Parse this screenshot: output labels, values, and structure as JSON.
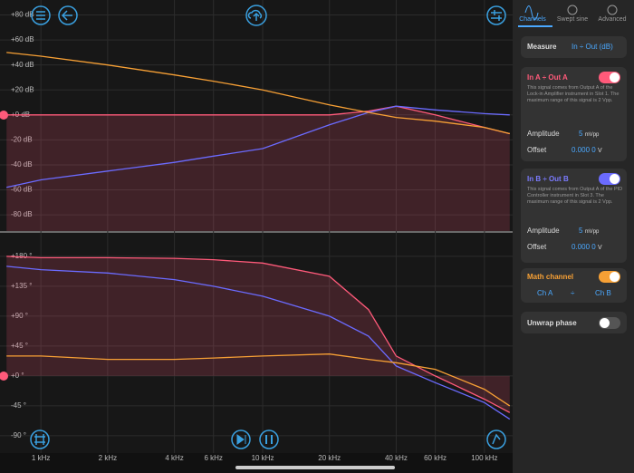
{
  "chart_data": [
    {
      "type": "line",
      "log_x": true,
      "xlim": [
        0.654,
        134
      ],
      "ylim": [
        -93,
        92
      ],
      "x": [
        0.7,
        1,
        2,
        4,
        6,
        10,
        20,
        30,
        40,
        60,
        100,
        130
      ],
      "yticks": [
        {
          "value": 80,
          "label": "+80 dB"
        },
        {
          "value": 60,
          "label": "+60 dB"
        },
        {
          "value": 40,
          "label": "+40 dB"
        },
        {
          "value": 20,
          "label": "+20 dB"
        },
        {
          "value": 0,
          "label": "+0 dB"
        },
        {
          "value": -20,
          "label": "-20 dB"
        },
        {
          "value": -40,
          "label": "-40 dB"
        },
        {
          "value": -60,
          "label": "-60 dB"
        },
        {
          "value": -80,
          "label": "-80 dB"
        }
      ],
      "series": [
        {
          "color": "#ff5a7a",
          "values": [
            0,
            0,
            0,
            0,
            0,
            0,
            0,
            3,
            7,
            0,
            -10,
            -15
          ]
        },
        {
          "color": "#6b6bff",
          "values": [
            -58,
            -52,
            -45,
            -38,
            -33,
            -27,
            -8,
            2,
            7,
            4,
            1,
            0
          ]
        },
        {
          "color": "#f7a035",
          "values": [
            50,
            47,
            40,
            32,
            27,
            20,
            8,
            2,
            -2,
            -5,
            -10,
            -15
          ]
        }
      ]
    },
    {
      "type": "line",
      "log_x": true,
      "xlim": [
        0.654,
        134
      ],
      "ylim": [
        -116,
        214
      ],
      "x": [
        0.7,
        1,
        2,
        4,
        6,
        10,
        20,
        30,
        40,
        60,
        100,
        130
      ],
      "xticks": [
        {
          "value": 1,
          "label": "1 kHz"
        },
        {
          "value": 2,
          "label": "2 kHz"
        },
        {
          "value": 4,
          "label": "4 kHz"
        },
        {
          "value": 6,
          "label": "6 kHz"
        },
        {
          "value": 10,
          "label": "10 kHz"
        },
        {
          "value": 20,
          "label": "20 kHz"
        },
        {
          "value": 40,
          "label": "40 kHz"
        },
        {
          "value": 60,
          "label": "60 kHz"
        },
        {
          "value": 100,
          "label": "100 kHz"
        }
      ],
      "yticks": [
        {
          "value": 180,
          "label": "+180 °"
        },
        {
          "value": 135,
          "label": "+135 °"
        },
        {
          "value": 90,
          "label": "+90 °"
        },
        {
          "value": 45,
          "label": "+45 °"
        },
        {
          "value": 0,
          "label": "+0 °"
        },
        {
          "value": -45,
          "label": "-45 °"
        },
        {
          "value": -90,
          "label": "-90 °"
        }
      ],
      "series": [
        {
          "color": "#ff5a7a",
          "values": [
            180,
            178,
            178,
            177,
            175,
            170,
            150,
            100,
            30,
            0,
            -35,
            -55
          ]
        },
        {
          "color": "#6b6bff",
          "values": [
            165,
            160,
            155,
            145,
            135,
            120,
            90,
            60,
            15,
            -10,
            -40,
            -65
          ]
        },
        {
          "color": "#f7a035",
          "values": [
            30,
            30,
            25,
            25,
            27,
            30,
            33,
            25,
            20,
            10,
            -20,
            -45
          ]
        }
      ]
    }
  ],
  "panel": {
    "tabs": [
      "Channels",
      "Swept sine",
      "Advanced"
    ],
    "measure": {
      "label": "Measure",
      "value": "In ÷ Out (dB)"
    },
    "channels": [
      {
        "title": "In A ÷ Out A",
        "description": "This signal comes from Output A of the Lock-in Amplifier instrument in Slot 1. The maximum range of this signal is 2 Vpp.",
        "amplitude_label": "Amplitude",
        "amplitude": "5",
        "amplitude_unit": "mVpp",
        "offset_label": "Offset",
        "offset": "0.000 0",
        "offset_unit": "V"
      },
      {
        "title": "In B ÷ Out B",
        "description": "This signal comes from Output A of the PID Controller instrument in Slot 3. The maximum range of this signal is 2 Vpp.",
        "amplitude_label": "Amplitude",
        "amplitude": "5",
        "amplitude_unit": "mVpp",
        "offset_label": "Offset",
        "offset": "0.000 0",
        "offset_unit": "V"
      }
    ],
    "math": {
      "title": "Math channel",
      "operand_a": "Ch A",
      "operator": "÷",
      "operand_b": "Ch B"
    },
    "unwrap": "Unwrap phase"
  }
}
